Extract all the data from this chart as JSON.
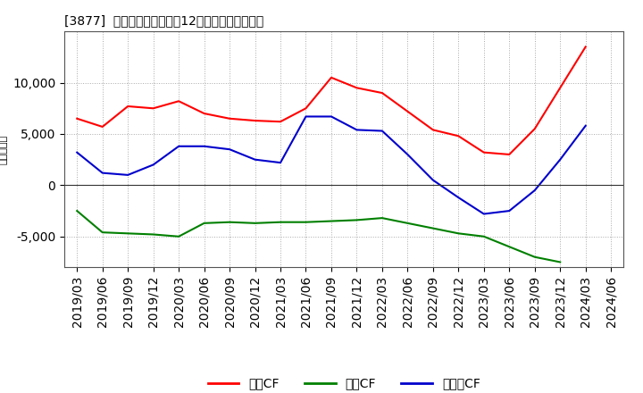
{
  "title": "[3877]  キャッシュフローの12か月移動合計の推移",
  "ylabel": "（百万円）",
  "background_color": "#ffffff",
  "grid_color": "#aaaaaa",
  "x_labels": [
    "2019/03",
    "2019/06",
    "2019/09",
    "2019/12",
    "2020/03",
    "2020/06",
    "2020/09",
    "2020/12",
    "2021/03",
    "2021/06",
    "2021/09",
    "2021/12",
    "2022/03",
    "2022/06",
    "2022/09",
    "2022/12",
    "2023/03",
    "2023/06",
    "2023/09",
    "2023/12",
    "2024/03",
    "2024/06"
  ],
  "operating_cf": [
    6500,
    5700,
    7700,
    7500,
    8200,
    7000,
    6500,
    6300,
    6200,
    7500,
    10500,
    9500,
    9000,
    7200,
    5400,
    4800,
    3200,
    3000,
    5500,
    9500,
    13500,
    null
  ],
  "investing_cf": [
    -2500,
    -4600,
    -4700,
    -4800,
    -5000,
    -3700,
    -3600,
    -3700,
    -3600,
    -3600,
    -3500,
    -3400,
    -3200,
    -3700,
    -4200,
    -4700,
    -5000,
    -6000,
    -7000,
    -7500,
    null,
    null
  ],
  "free_cf": [
    3200,
    1200,
    1000,
    2000,
    3800,
    3800,
    3500,
    2500,
    2200,
    6700,
    6700,
    5400,
    5300,
    3000,
    500,
    -1200,
    -2800,
    -2500,
    -500,
    2500,
    5800,
    null
  ],
  "line_colors": {
    "operating": "#ff0000",
    "investing": "#008000",
    "free": "#0000cc"
  },
  "ylim": [
    -8000,
    15000
  ],
  "yticks": [
    -5000,
    0,
    5000,
    10000
  ],
  "legend_labels": [
    "営業CF",
    "投資CF",
    "フリーCF"
  ],
  "legend_colors": [
    "#ff0000",
    "#008000",
    "#0000cc"
  ]
}
